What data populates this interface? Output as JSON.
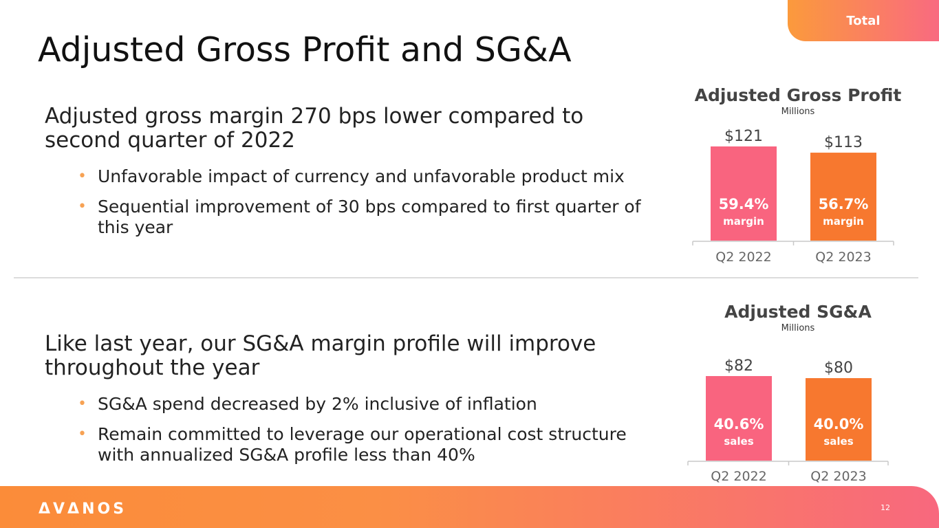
{
  "header": {
    "badge": "Total",
    "title": "Adjusted Gross Profit and SG&A"
  },
  "sections": [
    {
      "headline": "Adjusted gross margin 270 bps lower compared to second quarter of 2022",
      "bullets": [
        "Unfavorable impact of currency and unfavorable product mix",
        "Sequential improvement of 30 bps compared to first quarter of this year"
      ]
    },
    {
      "headline": "Like last year, our SG&A margin profile will improve throughout the year",
      "bullets": [
        "SG&A spend decreased by 2% inclusive of inflation",
        "Remain committed to leverage our operational cost structure with annualized SG&A profile less than 40%"
      ]
    }
  ],
  "chart_data": [
    {
      "type": "bar",
      "title": "Adjusted Gross Profit",
      "subtitle": "Millions",
      "categories": [
        "Q2 2022",
        "Q2 2023"
      ],
      "values": [
        121,
        113
      ],
      "value_labels": [
        "$121",
        "$113"
      ],
      "inner_pct": [
        "59.4%",
        "56.7%"
      ],
      "inner_label": [
        "margin",
        "margin"
      ],
      "colors": [
        "#f9647f",
        "#f7782f"
      ],
      "ylim": [
        0,
        121
      ],
      "grid": false
    },
    {
      "type": "bar",
      "title": "Adjusted SG&A",
      "subtitle": "Millions",
      "categories": [
        "Q2 2022",
        "Q2 2023"
      ],
      "values": [
        82,
        80
      ],
      "value_labels": [
        "$82",
        "$80"
      ],
      "inner_pct": [
        "40.6%",
        "40.0%"
      ],
      "inner_label": [
        "sales",
        "sales"
      ],
      "colors": [
        "#f9647f",
        "#f7782f"
      ],
      "ylim": [
        0,
        82
      ],
      "grid": false
    }
  ],
  "footer": {
    "logo": "ΔVΔNOS",
    "page_number": "12"
  }
}
